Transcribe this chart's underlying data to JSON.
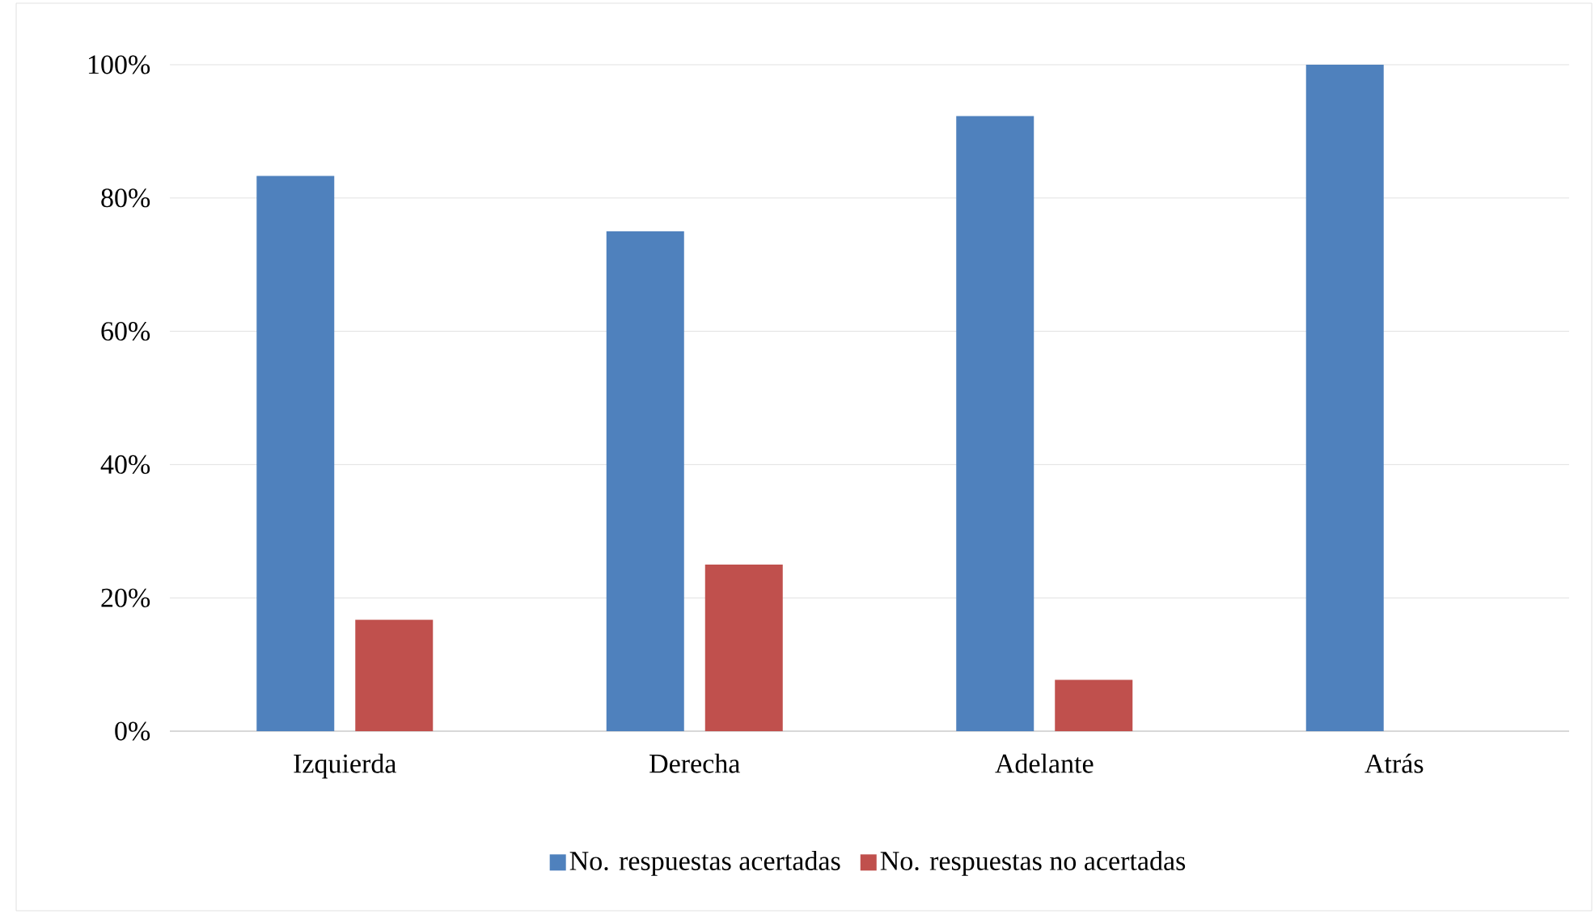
{
  "chart_data": {
    "type": "bar",
    "categories": [
      "Izquierda",
      "Derecha",
      "Adelante",
      "Atrás"
    ],
    "series": [
      {
        "name": "No. respuestas acertadas",
        "color": "#4f81bd",
        "values": [
          83.3,
          75,
          92.3,
          100
        ]
      },
      {
        "name": "No. respuestas no acertadas",
        "color": "#c0504d",
        "values": [
          16.7,
          25,
          7.7,
          0
        ]
      }
    ],
    "ylim": [
      0,
      100
    ],
    "yticks": [
      {
        "value": 0,
        "label": "0%"
      },
      {
        "value": 20,
        "label": "20%"
      },
      {
        "value": 40,
        "label": "40%"
      },
      {
        "value": 60,
        "label": "60%"
      },
      {
        "value": 80,
        "label": "80%"
      },
      {
        "value": 100,
        "label": "100%"
      }
    ],
    "grid": "y",
    "legend": "bottom"
  }
}
